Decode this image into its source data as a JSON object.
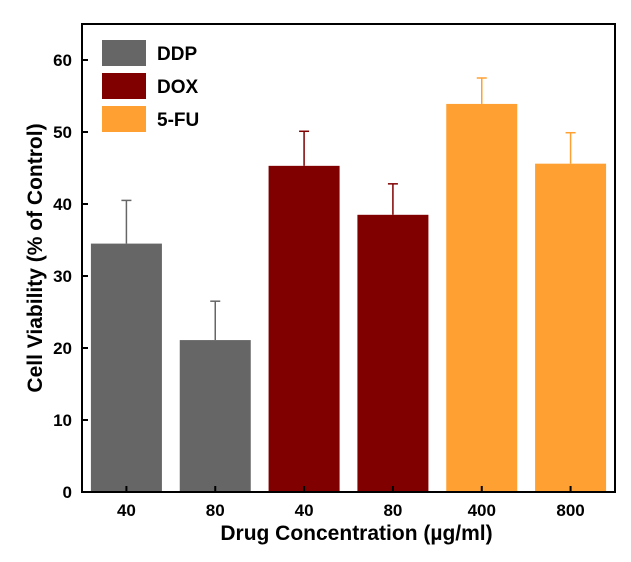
{
  "chart_data": {
    "type": "bar",
    "title": "",
    "xlabel": "Drug Concentration (µg/ml)",
    "ylabel": "Cell Viability (% of Control)",
    "ylim": [
      0,
      65
    ],
    "yticks": [
      "0",
      "10",
      "20",
      "30",
      "40",
      "50",
      "60"
    ],
    "legend_position": "top-left",
    "bars": [
      {
        "drug": "DDP",
        "category": "40",
        "value": 34.5,
        "error": 6.0
      },
      {
        "drug": "DDP",
        "category": "80",
        "value": 21.1,
        "error": 5.4
      },
      {
        "drug": "DOX",
        "category": "40",
        "value": 45.3,
        "error": 4.8
      },
      {
        "drug": "DOX",
        "category": "80",
        "value": 38.5,
        "error": 4.3
      },
      {
        "drug": "5-FU",
        "category": "400",
        "value": 53.9,
        "error": 3.6
      },
      {
        "drug": "5-FU",
        "category": "800",
        "value": 45.6,
        "error": 4.3
      }
    ],
    "legend": [
      {
        "name": "DDP",
        "color": "#666666"
      },
      {
        "name": "DOX",
        "color": "#800000"
      },
      {
        "name": "5-FU",
        "color": "#ffa032"
      }
    ]
  }
}
